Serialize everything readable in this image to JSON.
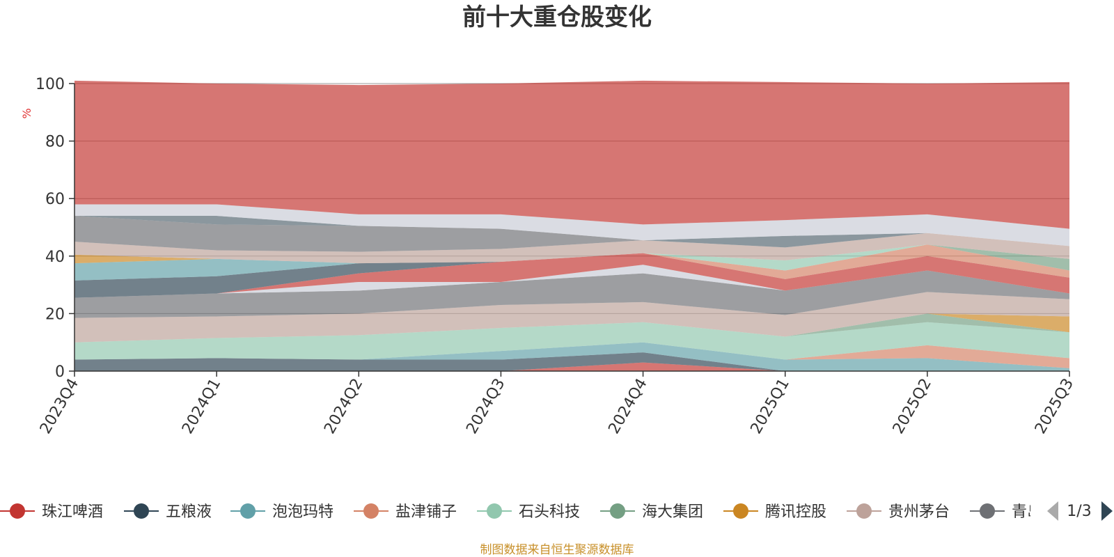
{
  "source_note": "制图数据来自恒生聚源数据库",
  "legend_page": "1/3",
  "chart_data": {
    "type": "area",
    "stacked": true,
    "title": "前十大重仓股变化",
    "ylabel": "%",
    "xlabel": "",
    "categories": [
      "2023Q4",
      "2024Q1",
      "2024Q2",
      "2024Q3",
      "2024Q4",
      "2025Q1",
      "2025Q2",
      "2025Q3"
    ],
    "ylim": [
      0,
      100
    ],
    "yticks": [
      0,
      20,
      40,
      60,
      80,
      100
    ],
    "grid": true,
    "legend_position": "bottom",
    "legend": [
      {
        "name": "珠江啤酒",
        "color": "#c23531"
      },
      {
        "name": "五粮液",
        "color": "#2f4554"
      },
      {
        "name": "泡泡玛特",
        "color": "#61a0a8"
      },
      {
        "name": "盐津铺子",
        "color": "#d48265"
      },
      {
        "name": "石头科技",
        "color": "#91c7ae"
      },
      {
        "name": "海大集团",
        "color": "#749f83"
      },
      {
        "name": "腾讯控股",
        "color": "#ca8622"
      },
      {
        "name": "贵州茅台",
        "color": "#bda29a"
      },
      {
        "name": "青岛啤酒",
        "color": "#6e7074"
      }
    ],
    "series": [
      {
        "color": "#c23531",
        "values": [
          0,
          0,
          0,
          0,
          3,
          0,
          0,
          0
        ]
      },
      {
        "color": "#2f4554",
        "values": [
          4,
          4.5,
          4,
          4,
          3.5,
          0,
          0,
          0
        ]
      },
      {
        "color": "#61a0a8",
        "values": [
          0,
          0,
          0,
          3,
          3.5,
          4,
          4.5,
          1
        ]
      },
      {
        "color": "#d48265",
        "values": [
          0,
          0,
          0,
          0,
          0,
          0,
          4.5,
          3.5
        ]
      },
      {
        "color": "#91c7ae",
        "values": [
          6,
          7,
          8.5,
          8,
          7,
          8,
          8,
          9
        ]
      },
      {
        "color": "#749f83",
        "values": [
          0,
          0,
          0,
          0,
          0,
          0,
          3,
          0
        ]
      },
      {
        "color": "#ca8622",
        "values": [
          0,
          0,
          0,
          0,
          0,
          0,
          0,
          5.5
        ]
      },
      {
        "color": "#bda29a",
        "values": [
          8.5,
          7.5,
          7.5,
          8,
          7,
          7.5,
          7.5,
          6
        ]
      },
      {
        "color": "#6e7074",
        "values": [
          7,
          8,
          8,
          8,
          10,
          8.5,
          7.5,
          2
        ]
      },
      {
        "color": "#c8ccd6",
        "values": [
          0,
          0,
          3,
          0,
          3,
          0,
          0,
          0
        ]
      },
      {
        "color": "#c23531",
        "values": [
          0,
          0,
          3,
          7,
          4,
          4,
          5,
          5.5
        ]
      },
      {
        "color": "#2f4554",
        "values": [
          6,
          6,
          3.5,
          0,
          0,
          0,
          0,
          0
        ]
      },
      {
        "color": "#61a0a8",
        "values": [
          6,
          6,
          0,
          0,
          0,
          0,
          0,
          0
        ]
      },
      {
        "color": "#d48265",
        "values": [
          0,
          0,
          0,
          0,
          0,
          3,
          4,
          2.5
        ]
      },
      {
        "color": "#91c7ae",
        "values": [
          0,
          0,
          0,
          0,
          0,
          3.5,
          0,
          0
        ]
      },
      {
        "color": "#749f83",
        "values": [
          0,
          0,
          0,
          0,
          0,
          0,
          0,
          4
        ]
      },
      {
        "color": "#ca8622",
        "values": [
          3,
          0,
          0,
          0,
          0,
          0,
          0,
          0
        ]
      },
      {
        "color": "#bda29a",
        "values": [
          4.5,
          3,
          4,
          4.5,
          4.5,
          4.5,
          4,
          4.5
        ]
      },
      {
        "color": "#6e7074",
        "values": [
          9,
          9,
          9,
          7,
          0,
          0,
          0,
          0
        ]
      },
      {
        "color": "#546570",
        "values": [
          0,
          3,
          0,
          0,
          0,
          4,
          0,
          0
        ]
      },
      {
        "color": "#c8ccd6",
        "values": [
          4,
          4,
          4,
          5,
          5.5,
          5.5,
          6.5,
          6
        ]
      },
      {
        "color": "#c23531",
        "values": [
          43,
          42,
          45,
          45.5,
          50,
          48,
          45.5,
          51
        ]
      }
    ]
  }
}
